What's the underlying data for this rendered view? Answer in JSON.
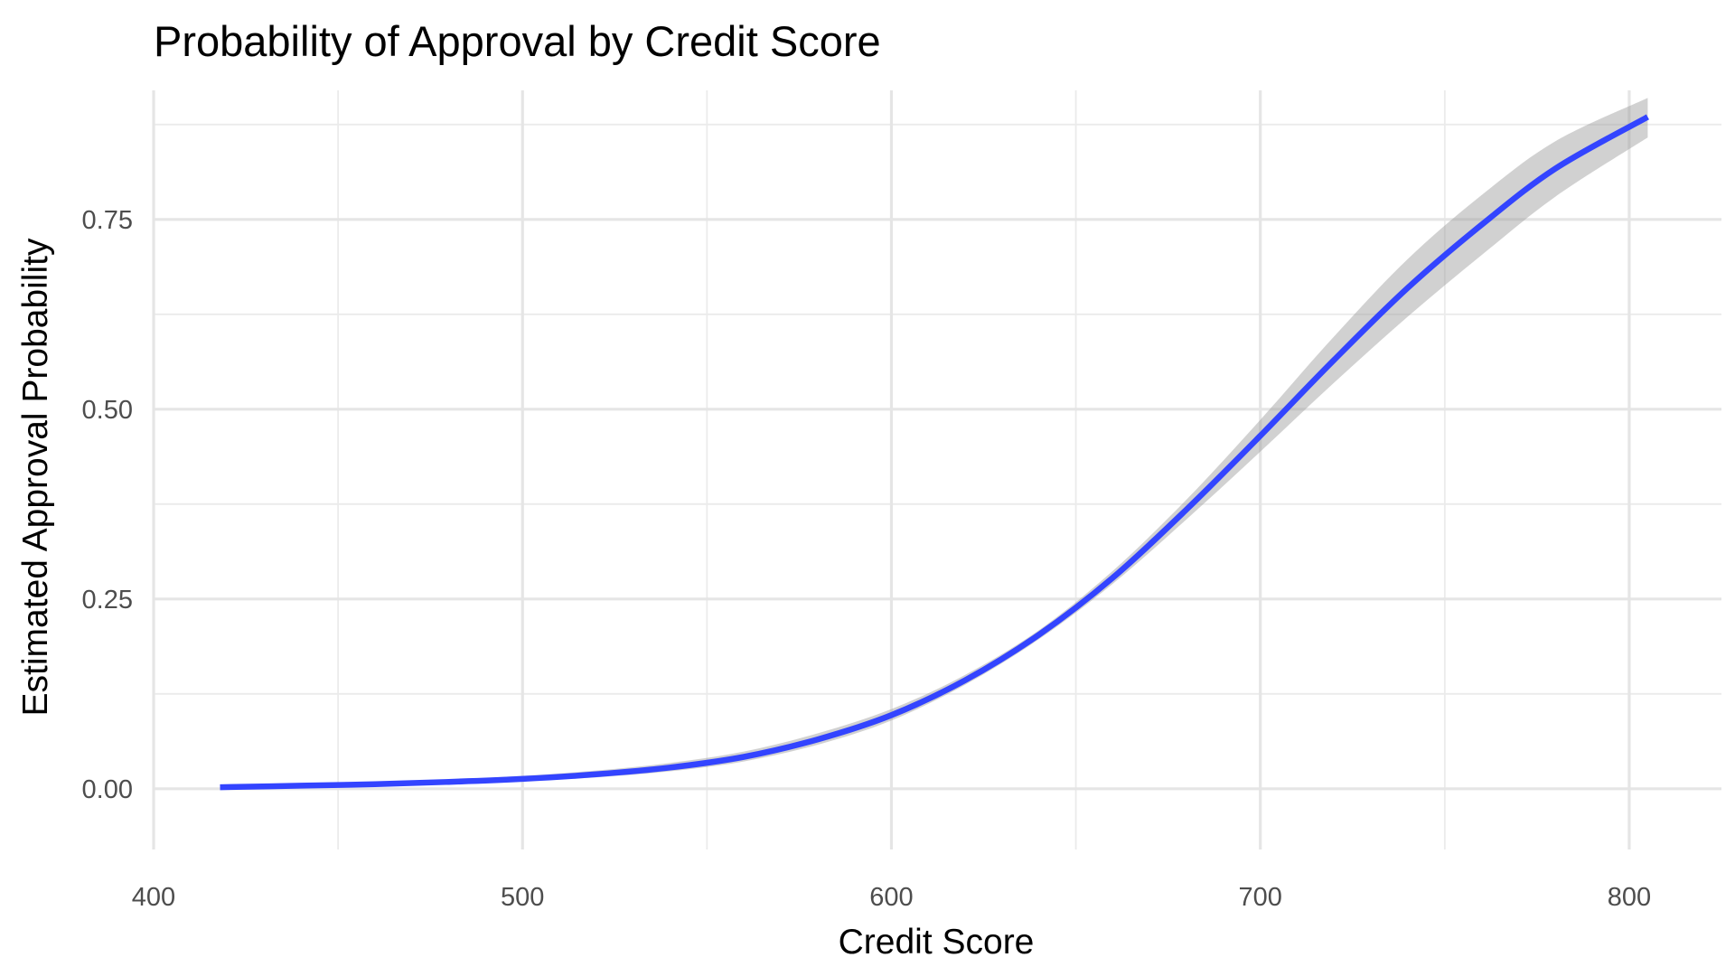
{
  "chart_data": {
    "type": "line",
    "title": "Probability of Approval by Credit Score",
    "xlabel": "Credit Score",
    "ylabel": "Estimated Approval Probability",
    "xlim": [
      400,
      825
    ],
    "ylim": [
      -0.08,
      0.92
    ],
    "x_ticks": [
      400,
      500,
      600,
      700,
      800
    ],
    "x_tick_labels": [
      "400",
      "500",
      "600",
      "700",
      "800"
    ],
    "x_minor_ticks": [
      450,
      550,
      650,
      750
    ],
    "y_ticks": [
      0,
      0.25,
      0.5,
      0.75
    ],
    "y_tick_labels": [
      "0.00",
      "0.25",
      "0.50",
      "0.75"
    ],
    "y_minor_ticks": [
      0.125,
      0.375,
      0.625,
      0.875
    ],
    "grid": true,
    "legend": "none",
    "line_color": "#3344ff",
    "ribbon_color": "#999999",
    "series": [
      {
        "x": [
          418,
          440,
          460,
          480,
          500,
          520,
          540,
          560,
          580,
          600,
          620,
          640,
          660,
          680,
          700,
          720,
          740,
          760,
          780,
          805
        ],
        "y": [
          0.002,
          0.004,
          0.006,
          0.009,
          0.013,
          0.019,
          0.028,
          0.042,
          0.065,
          0.097,
          0.143,
          0.203,
          0.278,
          0.368,
          0.465,
          0.565,
          0.66,
          0.743,
          0.817,
          0.885
        ],
        "lower": [
          0.001,
          0.002,
          0.004,
          0.006,
          0.01,
          0.015,
          0.023,
          0.036,
          0.058,
          0.09,
          0.137,
          0.197,
          0.27,
          0.355,
          0.444,
          0.535,
          0.622,
          0.703,
          0.78,
          0.858
        ],
        "upper": [
          0.004,
          0.006,
          0.008,
          0.012,
          0.017,
          0.024,
          0.034,
          0.049,
          0.073,
          0.105,
          0.15,
          0.209,
          0.287,
          0.381,
          0.486,
          0.596,
          0.698,
          0.782,
          0.853,
          0.91
        ]
      }
    ]
  }
}
